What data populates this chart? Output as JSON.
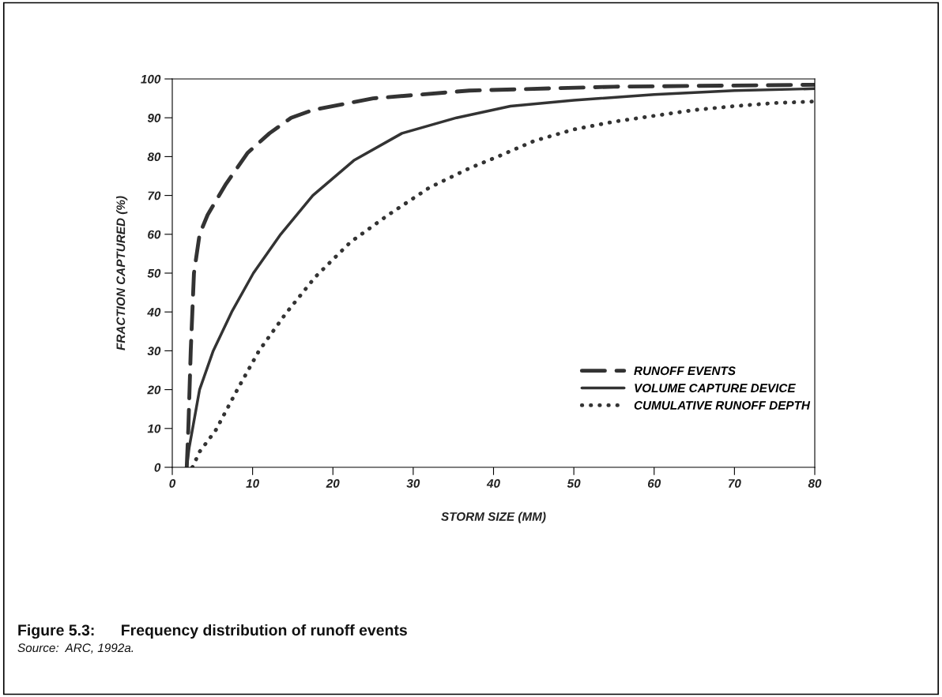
{
  "chart_data": {
    "type": "line",
    "xlabel": "STORM SIZE (MM)",
    "ylabel": "FRACTION CAPTURED (%)",
    "xlim": [
      0,
      80
    ],
    "ylim": [
      0,
      100
    ],
    "xticks": [
      0,
      10,
      20,
      30,
      40,
      50,
      60,
      70,
      80
    ],
    "yticks": [
      0,
      10,
      20,
      30,
      40,
      50,
      60,
      70,
      80,
      90,
      100
    ],
    "grid": false,
    "legend": "bottom right",
    "marker": "none",
    "series": [
      {
        "name": "RUNOFF EVENTS",
        "color": "#333333",
        "line_style": "dashed",
        "x": [
          1.8,
          2.0,
          2.3,
          2.7,
          3.4,
          4.4,
          6.7,
          9.4,
          12.1,
          14.8,
          17.5,
          25,
          37,
          55,
          80
        ],
        "values": [
          0,
          10,
          30,
          50,
          60,
          65,
          73,
          81,
          86,
          90,
          92,
          95,
          97,
          98,
          98.5
        ]
      },
      {
        "name": "VOLUME CAPTURE DEVICE",
        "color": "#333333",
        "line_style": "solid",
        "x": [
          1.8,
          2.1,
          3.4,
          5.1,
          7.4,
          10.1,
          13.5,
          17.5,
          22.6,
          28.6,
          35.4,
          42.1,
          50,
          60,
          70,
          80
        ],
        "values": [
          0,
          5,
          20,
          30,
          40,
          50,
          60,
          70,
          79,
          86,
          90,
          93,
          94.5,
          96,
          97,
          97.5
        ]
      },
      {
        "name": "CUMULATIVE RUNOFF DEPTH",
        "color": "#333333",
        "line_style": "dotted",
        "x": [
          2.5,
          3.4,
          5.4,
          8.1,
          10.8,
          14.1,
          17.8,
          22.2,
          26.9,
          32,
          37,
          41.1,
          45,
          50,
          55,
          60,
          65,
          70,
          75,
          80
        ],
        "values": [
          0,
          4,
          9.5,
          20,
          30,
          39.5,
          49,
          58,
          65,
          72,
          77,
          80.5,
          84,
          87,
          89,
          90.5,
          92,
          93,
          93.8,
          94.2
        ]
      }
    ],
    "annotations": [
      "Figure 5.3:      Frequency distribution of runoff events",
      "Source:  ARC, 1992a."
    ]
  }
}
